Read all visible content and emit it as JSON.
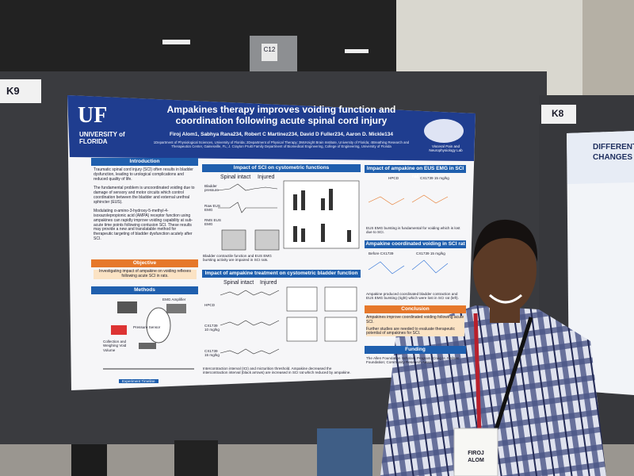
{
  "signs": {
    "left": "K9",
    "ceiling": "C12",
    "right": "K8"
  },
  "poster": {
    "logo": {
      "mark": "UF",
      "name": "UNIVERSITY of FLORIDA"
    },
    "title": "Ampakines therapy improves voiding function and coordination following acute spinal cord injury",
    "authors": "Firoj Alom1, Sabhya Rana234, Robert C Martinez234, David D Fuller234, Aaron D. Mickle134",
    "affiliations": "1Department of Physiological Sciences, University of Florida; 2Department of Physical Therapy; 3McKnight Brain Institute, University of Florida; 4Breathing Research and Therapeutics Center, Gainesville, FL; J. Crayton Pruitt Family Department of Biomedical Engineering, College of Engineering, University of Florida",
    "lab": "Visceral Pain and Neurophysiology Lab",
    "sections": {
      "introduction": {
        "heading": "Introduction",
        "bullets": [
          "Traumatic spinal cord injury (SCI) often results in bladder dysfunction, leading to urological complications and reduced quality of life.",
          "The fundamental problem is uncoordinated voiding due to damage of sensory and motor circuits which control coordination between the bladder and external urethral sphincter (EUS).",
          "Modulating α-amino-3-hydroxy-5-methyl-4-isoxazolepropionic acid (AMPA) receptor function using ampakines can rapidly improve voiding capability at sub-acute time points following contusion SCI. These results may provide a new and translatable method for therapeutic targeting of bladder dysfunction acutely after SCI."
        ]
      },
      "objective": {
        "heading": "Objective",
        "text": "Investigating impact of ampakine on voiding reflexes following acute SCI in rats."
      },
      "methods": {
        "heading": "Methods",
        "labels": [
          "EMG Amplifier",
          "Pressure Sensor",
          "Collection and Weighing Void Volume",
          "Experiment Timeline"
        ]
      },
      "sci": {
        "heading": "Impact of SCI on cystometric functions",
        "columns": [
          "Spinal intact",
          "Injured"
        ],
        "rows": [
          "Bladder pressure",
          "Raw EUS EMG",
          "RMS EUS EMG"
        ],
        "caption": "Bladder contractile function and EUS EMG bursting activity are impaired in SCI rats."
      },
      "eus": {
        "heading": "Impact of ampakine on EUS EMG in SCI rat",
        "columns": [
          "HPCD",
          "CX1739 15 mg/kg"
        ],
        "caption": "EUS EMG bursting is fundamental for voiding which is lost due to SCI."
      },
      "coordinated": {
        "heading": "Ampakine coordinated voiding in SCI rat",
        "columns": [
          "Before CX1739",
          "CX1739 15 mg/kg"
        ],
        "caption": "Ampakine produced coordinated bladder contraction and EUS EMG bursting (right) which were lost in SCI rat (left)."
      },
      "treatment": {
        "heading": "Impact of ampakine treatment on cystometric bladder function",
        "columns": [
          "Spinal intact",
          "Injured"
        ],
        "rows": [
          "HPCD",
          "CX1739 10 mg/kg",
          "CX1739 15 mg/kg"
        ],
        "caption": "Intercontraction interval (ICI) and micturition threshold. Ampakine decreased the intercontraction interval (black arrows) are increased in SCI rat which reduced by ampakine."
      },
      "conclusion": {
        "heading": "Conclusion",
        "bullets": [
          "Ampakines improve coordinated voiding following acute SCI.",
          "Further studies are needed to evaluate therapeutic potential of ampakines for SCI."
        ]
      },
      "funding": {
        "heading": "Funding",
        "text": "The Allen Foundation Scholars Program; Craig H. Neilsen Foundation; Community Research Award"
      }
    }
  },
  "right_poster": {
    "title_lines": [
      "DIFFERENTI",
      "CHANGES IN"
    ]
  },
  "badge": {
    "first": "FIROJ",
    "last": "ALOM"
  }
}
